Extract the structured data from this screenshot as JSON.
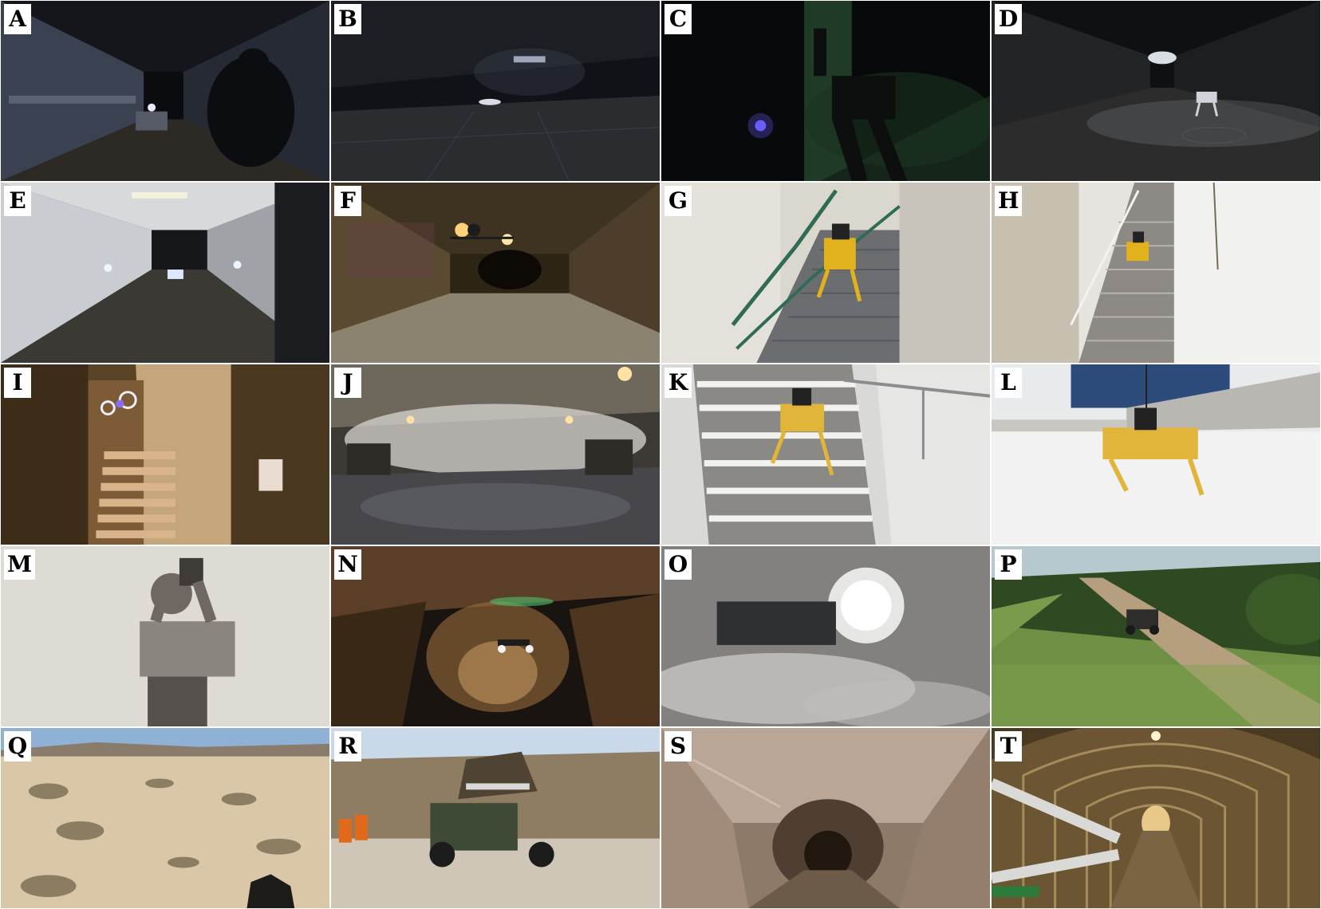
{
  "figure": {
    "panels": [
      {
        "label": "A",
        "scene": "dark-corridor"
      },
      {
        "label": "B",
        "scene": "dark-garage"
      },
      {
        "label": "C",
        "scene": "dark-green"
      },
      {
        "label": "D",
        "scene": "dark-tunnel"
      },
      {
        "label": "E",
        "scene": "tiled-corridor"
      },
      {
        "label": "F",
        "scene": "graffiti-tunnel"
      },
      {
        "label": "G",
        "scene": "indoor-stairs"
      },
      {
        "label": "H",
        "scene": "outdoor-stairs-snow"
      },
      {
        "label": "I",
        "scene": "stairwell-drone"
      },
      {
        "label": "J",
        "scene": "smoky-mine"
      },
      {
        "label": "K",
        "scene": "snowy-stairs"
      },
      {
        "label": "L",
        "scene": "snowy-ground"
      },
      {
        "label": "M",
        "scene": "smoke-person"
      },
      {
        "label": "N",
        "scene": "cave-drone"
      },
      {
        "label": "O",
        "scene": "smoke-light"
      },
      {
        "label": "P",
        "scene": "grass-trail"
      },
      {
        "label": "Q",
        "scene": "desert"
      },
      {
        "label": "R",
        "scene": "utv-quarry"
      },
      {
        "label": "S",
        "scene": "rock-mine"
      },
      {
        "label": "T",
        "scene": "pipe-tunnel"
      }
    ]
  },
  "colors": {
    "label_bg": "#ffffff",
    "label_text": "#000000"
  }
}
